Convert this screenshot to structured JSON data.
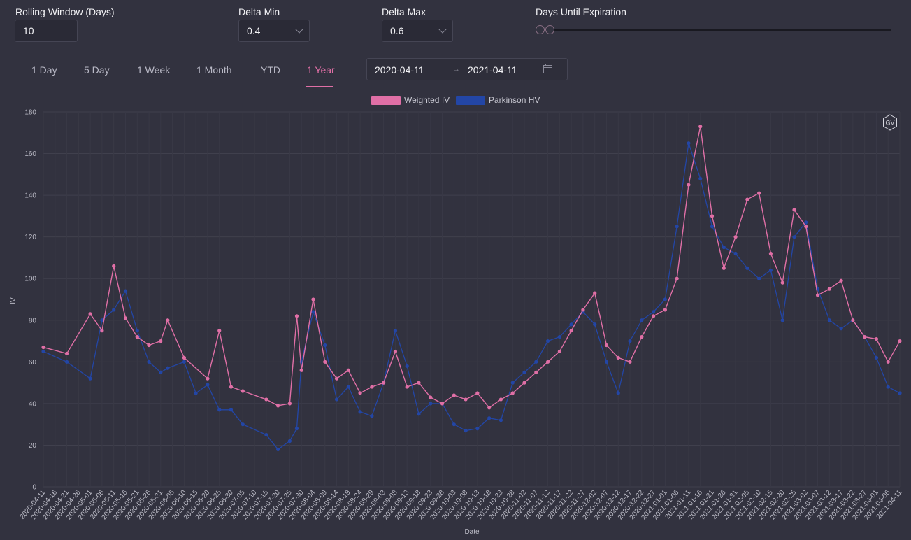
{
  "filters": {
    "rolling_window": {
      "label": "Rolling Window (Days)",
      "value": "10"
    },
    "delta_min": {
      "label": "Delta Min",
      "value": "0.4"
    },
    "delta_max": {
      "label": "Delta Max",
      "value": "0.6"
    },
    "days_until_expiration": {
      "label": "Days Until Expiration"
    }
  },
  "tabs": [
    {
      "label": "1 Day"
    },
    {
      "label": "5 Day"
    },
    {
      "label": "1 Week"
    },
    {
      "label": "1 Month"
    },
    {
      "label": "YTD"
    },
    {
      "label": "1 Year",
      "active": true
    }
  ],
  "date_range": {
    "start": "2020-04-11",
    "end": "2021-04-11",
    "separator": "→"
  },
  "badge": "GV",
  "icons": {
    "calendar": "calendar-icon",
    "chevron": "chevron-down-icon",
    "badge": "hexagon-badge-icon"
  },
  "colors": {
    "weighted_iv": "#e06fa6",
    "parkinson_hv": "#2346a6",
    "background": "#32323f",
    "accent": "#e06fa6"
  },
  "chart_data": {
    "type": "line",
    "title": "",
    "xlabel": "Date",
    "ylabel": "IV",
    "ylim": [
      0,
      180
    ],
    "yticks": [
      0,
      20,
      40,
      60,
      80,
      100,
      120,
      140,
      160,
      180
    ],
    "grid": true,
    "legend_position": "top-center",
    "xtick_labels": [
      "2020-04-11",
      "2020-04-16",
      "2020-04-21",
      "2020-04-26",
      "2020-05-01",
      "2020-05-06",
      "2020-05-11",
      "2020-05-16",
      "2020-05-21",
      "2020-05-26",
      "2020-05-31",
      "2020-06-05",
      "2020-06-10",
      "2020-06-15",
      "2020-06-20",
      "2020-06-25",
      "2020-06-30",
      "2020-07-05",
      "2020-07-10",
      "2020-07-15",
      "2020-07-20",
      "2020-07-25",
      "2020-07-30",
      "2020-08-04",
      "2020-08-09",
      "2020-08-14",
      "2020-08-19",
      "2020-08-24",
      "2020-08-29",
      "2020-09-03",
      "2020-09-08",
      "2020-09-13",
      "2020-09-18",
      "2020-09-23",
      "2020-09-28",
      "2020-10-03",
      "2020-10-08",
      "2020-10-13",
      "2020-10-18",
      "2020-10-23",
      "2020-10-28",
      "2020-11-02",
      "2020-11-07",
      "2020-11-12",
      "2020-11-17",
      "2020-11-22",
      "2020-11-27",
      "2020-12-02",
      "2020-12-07",
      "2020-12-12",
      "2020-12-17",
      "2020-12-22",
      "2020-12-27",
      "2021-01-01",
      "2021-01-06",
      "2021-01-11",
      "2021-01-16",
      "2021-01-21",
      "2021-01-26",
      "2021-01-31",
      "2021-02-05",
      "2021-02-10",
      "2021-02-15",
      "2021-02-20",
      "2021-02-25",
      "2021-03-02",
      "2021-03-07",
      "2021-03-12",
      "2021-03-17",
      "2021-03-22",
      "2021-03-27",
      "2021-04-01",
      "2021-04-06",
      "2021-04-11"
    ],
    "series": [
      {
        "name": "Weighted IV",
        "x": [
          "2020-04-11",
          "2020-04-21",
          "2020-05-01",
          "2020-05-06",
          "2020-05-11",
          "2020-05-16",
          "2020-05-21",
          "2020-05-26",
          "2020-05-31",
          "2020-06-03",
          "2020-06-10",
          "2020-06-20",
          "2020-06-25",
          "2020-06-30",
          "2020-07-05",
          "2020-07-15",
          "2020-07-20",
          "2020-07-25",
          "2020-07-28",
          "2020-07-30",
          "2020-08-04",
          "2020-08-09",
          "2020-08-14",
          "2020-08-19",
          "2020-08-24",
          "2020-08-29",
          "2020-09-03",
          "2020-09-08",
          "2020-09-13",
          "2020-09-18",
          "2020-09-23",
          "2020-09-28",
          "2020-10-03",
          "2020-10-08",
          "2020-10-13",
          "2020-10-18",
          "2020-10-23",
          "2020-10-28",
          "2020-11-02",
          "2020-11-07",
          "2020-11-12",
          "2020-11-17",
          "2020-11-22",
          "2020-11-27",
          "2020-12-02",
          "2020-12-07",
          "2020-12-12",
          "2020-12-17",
          "2020-12-22",
          "2020-12-27",
          "2021-01-01",
          "2021-01-06",
          "2021-01-11",
          "2021-01-16",
          "2021-01-21",
          "2021-01-26",
          "2021-01-31",
          "2021-02-05",
          "2021-02-10",
          "2021-02-15",
          "2021-02-20",
          "2021-02-25",
          "2021-03-02",
          "2021-03-07",
          "2021-03-12",
          "2021-03-17",
          "2021-03-22",
          "2021-03-27",
          "2021-04-01",
          "2021-04-06",
          "2021-04-11"
        ],
        "y": [
          67,
          64,
          83,
          75,
          106,
          81,
          72,
          68,
          70,
          80,
          62,
          52,
          75,
          48,
          46,
          42,
          39,
          40,
          82,
          56,
          90,
          60,
          52,
          56,
          45,
          48,
          50,
          65,
          48,
          50,
          43,
          40,
          44,
          42,
          45,
          38,
          42,
          45,
          50,
          55,
          60,
          65,
          75,
          85,
          93,
          68,
          62,
          60,
          72,
          82,
          85,
          100,
          145,
          173,
          130,
          105,
          120,
          138,
          141,
          112,
          98,
          133,
          125,
          92,
          95,
          99,
          80,
          72,
          71,
          60,
          70
        ]
      },
      {
        "name": "Parkinson HV",
        "x": [
          "2020-04-11",
          "2020-04-21",
          "2020-05-01",
          "2020-05-06",
          "2020-05-11",
          "2020-05-16",
          "2020-05-21",
          "2020-05-26",
          "2020-05-31",
          "2020-06-03",
          "2020-06-10",
          "2020-06-15",
          "2020-06-20",
          "2020-06-25",
          "2020-06-30",
          "2020-07-05",
          "2020-07-15",
          "2020-07-20",
          "2020-07-25",
          "2020-07-28",
          "2020-07-30",
          "2020-08-04",
          "2020-08-09",
          "2020-08-14",
          "2020-08-19",
          "2020-08-24",
          "2020-08-29",
          "2020-09-03",
          "2020-09-08",
          "2020-09-13",
          "2020-09-18",
          "2020-09-23",
          "2020-09-28",
          "2020-10-03",
          "2020-10-08",
          "2020-10-13",
          "2020-10-18",
          "2020-10-23",
          "2020-10-28",
          "2020-11-02",
          "2020-11-07",
          "2020-11-12",
          "2020-11-17",
          "2020-11-22",
          "2020-11-27",
          "2020-12-02",
          "2020-12-07",
          "2020-12-12",
          "2020-12-17",
          "2020-12-22",
          "2020-12-27",
          "2021-01-01",
          "2021-01-06",
          "2021-01-11",
          "2021-01-16",
          "2021-01-21",
          "2021-01-26",
          "2021-01-31",
          "2021-02-05",
          "2021-02-10",
          "2021-02-15",
          "2021-02-20",
          "2021-02-25",
          "2021-03-02",
          "2021-03-07",
          "2021-03-12",
          "2021-03-17",
          "2021-03-22",
          "2021-03-27",
          "2021-04-01",
          "2021-04-06",
          "2021-04-11"
        ],
        "y": [
          65,
          60,
          52,
          80,
          85,
          94,
          75,
          60,
          55,
          57,
          60,
          45,
          49,
          37,
          37,
          30,
          25,
          18,
          22,
          28,
          60,
          84,
          68,
          42,
          48,
          36,
          34,
          50,
          75,
          58,
          35,
          40,
          40,
          30,
          27,
          28,
          33,
          32,
          50,
          55,
          60,
          70,
          72,
          78,
          84,
          78,
          60,
          45,
          70,
          80,
          84,
          90,
          125,
          165,
          148,
          125,
          115,
          112,
          105,
          100,
          104,
          80,
          120,
          127,
          95,
          80,
          76,
          80,
          72,
          62,
          48,
          45
        ]
      }
    ]
  }
}
